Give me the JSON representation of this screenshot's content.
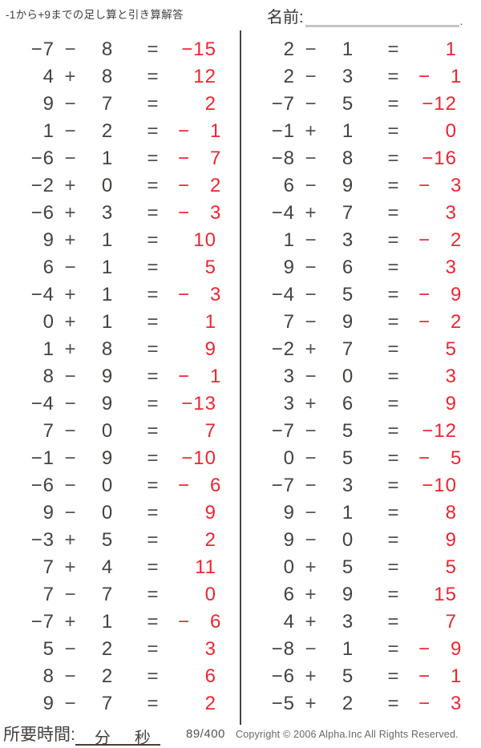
{
  "header": {
    "title": "-1から+9までの足し算と引き算解答",
    "name_label": "名前:",
    "name_line_end": "."
  },
  "symbols": {
    "equals": "="
  },
  "columns": {
    "left": [
      {
        "a": "−7",
        "op": "−",
        "b": "8",
        "ans": "−15"
      },
      {
        "a": "4",
        "op": "+",
        "b": "8",
        "ans": "12"
      },
      {
        "a": "9",
        "op": "−",
        "b": "7",
        "ans": "2"
      },
      {
        "a": "1",
        "op": "−",
        "b": "2",
        "ans": "− 1"
      },
      {
        "a": "−6",
        "op": "−",
        "b": "1",
        "ans": "− 7"
      },
      {
        "a": "−2",
        "op": "+",
        "b": "0",
        "ans": "− 2"
      },
      {
        "a": "−6",
        "op": "+",
        "b": "3",
        "ans": "− 3"
      },
      {
        "a": "9",
        "op": "+",
        "b": "1",
        "ans": "10"
      },
      {
        "a": "6",
        "op": "−",
        "b": "1",
        "ans": "5"
      },
      {
        "a": "−4",
        "op": "+",
        "b": "1",
        "ans": "− 3"
      },
      {
        "a": "0",
        "op": "+",
        "b": "1",
        "ans": "1"
      },
      {
        "a": "1",
        "op": "+",
        "b": "8",
        "ans": "9"
      },
      {
        "a": "8",
        "op": "−",
        "b": "9",
        "ans": "− 1"
      },
      {
        "a": "−4",
        "op": "−",
        "b": "9",
        "ans": "−13"
      },
      {
        "a": "7",
        "op": "−",
        "b": "0",
        "ans": "7"
      },
      {
        "a": "−1",
        "op": "−",
        "b": "9",
        "ans": "−10"
      },
      {
        "a": "−6",
        "op": "−",
        "b": "0",
        "ans": "− 6"
      },
      {
        "a": "9",
        "op": "−",
        "b": "0",
        "ans": "9"
      },
      {
        "a": "−3",
        "op": "+",
        "b": "5",
        "ans": "2"
      },
      {
        "a": "7",
        "op": "+",
        "b": "4",
        "ans": "11"
      },
      {
        "a": "7",
        "op": "−",
        "b": "7",
        "ans": "0"
      },
      {
        "a": "−7",
        "op": "+",
        "b": "1",
        "ans": "− 6"
      },
      {
        "a": "5",
        "op": "−",
        "b": "2",
        "ans": "3"
      },
      {
        "a": "8",
        "op": "−",
        "b": "2",
        "ans": "6"
      },
      {
        "a": "9",
        "op": "−",
        "b": "7",
        "ans": "2"
      }
    ],
    "right": [
      {
        "a": "2",
        "op": "−",
        "b": "1",
        "ans": "1"
      },
      {
        "a": "2",
        "op": "−",
        "b": "3",
        "ans": "− 1"
      },
      {
        "a": "−7",
        "op": "−",
        "b": "5",
        "ans": "−12"
      },
      {
        "a": "−1",
        "op": "+",
        "b": "1",
        "ans": "0"
      },
      {
        "a": "−8",
        "op": "−",
        "b": "8",
        "ans": "−16"
      },
      {
        "a": "6",
        "op": "−",
        "b": "9",
        "ans": "− 3"
      },
      {
        "a": "−4",
        "op": "+",
        "b": "7",
        "ans": "3"
      },
      {
        "a": "1",
        "op": "−",
        "b": "3",
        "ans": "− 2"
      },
      {
        "a": "9",
        "op": "−",
        "b": "6",
        "ans": "3"
      },
      {
        "a": "−4",
        "op": "−",
        "b": "5",
        "ans": "− 9"
      },
      {
        "a": "7",
        "op": "−",
        "b": "9",
        "ans": "− 2"
      },
      {
        "a": "−2",
        "op": "+",
        "b": "7",
        "ans": "5"
      },
      {
        "a": "3",
        "op": "−",
        "b": "0",
        "ans": "3"
      },
      {
        "a": "3",
        "op": "+",
        "b": "6",
        "ans": "9"
      },
      {
        "a": "−7",
        "op": "−",
        "b": "5",
        "ans": "−12"
      },
      {
        "a": "0",
        "op": "−",
        "b": "5",
        "ans": "− 5"
      },
      {
        "a": "−7",
        "op": "−",
        "b": "3",
        "ans": "−10"
      },
      {
        "a": "9",
        "op": "−",
        "b": "1",
        "ans": "8"
      },
      {
        "a": "9",
        "op": "−",
        "b": "0",
        "ans": "9"
      },
      {
        "a": "0",
        "op": "+",
        "b": "5",
        "ans": "5"
      },
      {
        "a": "6",
        "op": "+",
        "b": "9",
        "ans": "15"
      },
      {
        "a": "4",
        "op": "+",
        "b": "3",
        "ans": "7"
      },
      {
        "a": "−8",
        "op": "−",
        "b": "1",
        "ans": "− 9"
      },
      {
        "a": "−6",
        "op": "+",
        "b": "5",
        "ans": "− 1"
      },
      {
        "a": "−5",
        "op": "+",
        "b": "2",
        "ans": "− 3"
      }
    ]
  },
  "footer": {
    "time_label": "所要時間:",
    "minutes_label": "分",
    "seconds_label": "秒",
    "page_number": "89/400",
    "copyright": "Copyright © 2006 Alpha.Inc All Rights Reserved."
  },
  "colors": {
    "answer_red": "#ee2532",
    "ink": "#46413d",
    "line_gray": "#c6c3c2",
    "muted": "#6c6766"
  }
}
